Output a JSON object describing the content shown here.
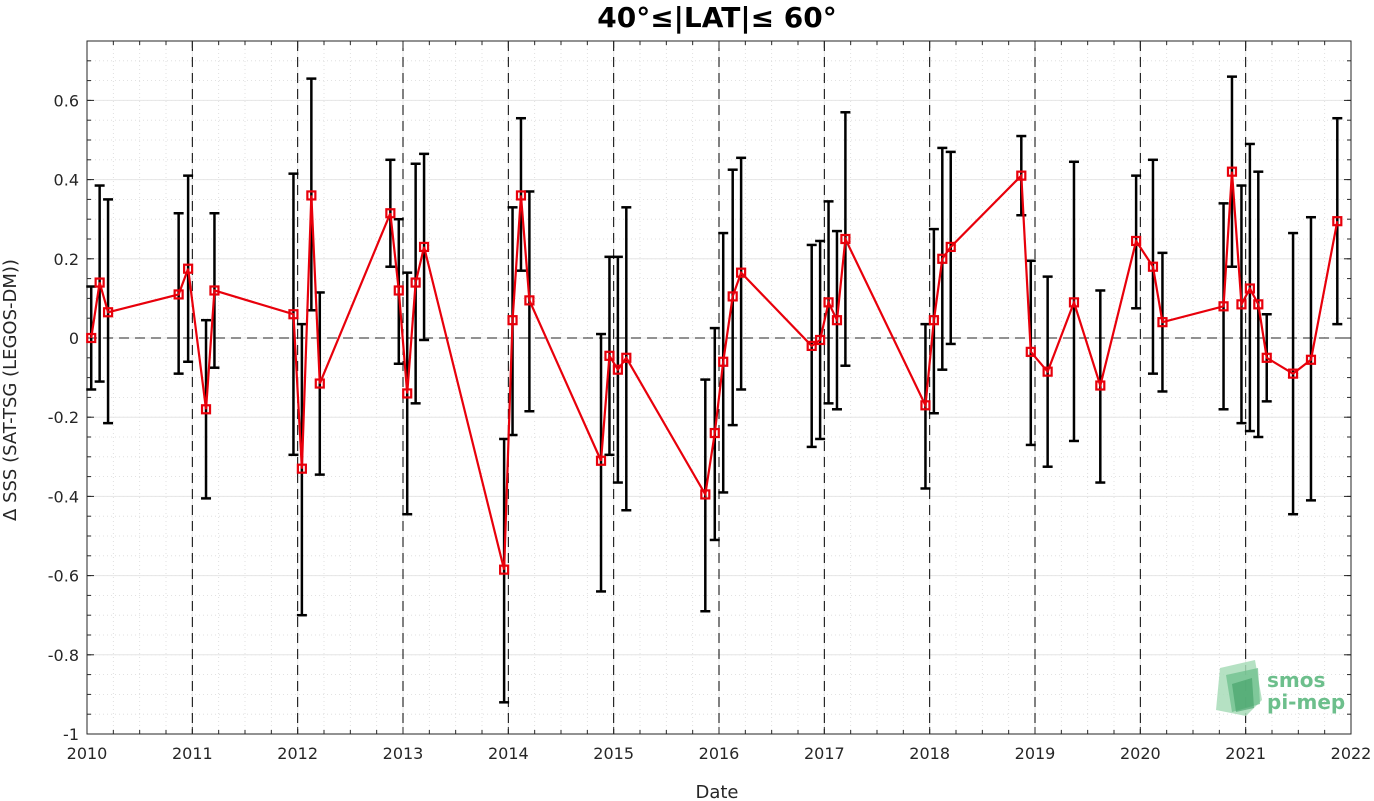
{
  "chart_data": {
    "type": "line",
    "title": "40°≤|LAT|≤ 60°",
    "xlabel": "Date",
    "ylabel": "Δ SSS (SAT-TSG (LEGOS-DM))",
    "xlim": [
      2010,
      2022
    ],
    "ylim": [
      -1,
      0.75
    ],
    "xticks": [
      "2010",
      "2011",
      "2012",
      "2013",
      "2014",
      "2015",
      "2016",
      "2017",
      "2018",
      "2019",
      "2020",
      "2021",
      "2022"
    ],
    "yticks": [
      "-1",
      "-0.8",
      "-0.6",
      "-0.4",
      "-0.2",
      "0",
      "0.2",
      "0.4",
      "0.6"
    ],
    "grid": true,
    "year_dividers": [
      2011,
      2012,
      2013,
      2014,
      2015,
      2016,
      2017,
      2018,
      2019,
      2020,
      2021
    ],
    "zero_line": true,
    "series": [
      {
        "color": "#e8000b",
        "marker": "square",
        "error_bar_color": "#000000",
        "points": [
          {
            "x": 2010.04,
            "y": 0.0,
            "lo": -0.13,
            "hi": 0.13
          },
          {
            "x": 2010.12,
            "y": 0.14,
            "lo": -0.11,
            "hi": 0.385
          },
          {
            "x": 2010.2,
            "y": 0.065,
            "lo": -0.215,
            "hi": 0.35
          },
          {
            "x": 2010.87,
            "y": 0.11,
            "lo": -0.09,
            "hi": 0.315
          },
          {
            "x": 2010.96,
            "y": 0.175,
            "lo": -0.06,
            "hi": 0.41
          },
          {
            "x": 2011.13,
            "y": -0.18,
            "lo": -0.405,
            "hi": 0.045
          },
          {
            "x": 2011.21,
            "y": 0.12,
            "lo": -0.075,
            "hi": 0.315
          },
          {
            "x": 2011.96,
            "y": 0.06,
            "lo": -0.295,
            "hi": 0.415
          },
          {
            "x": 2012.04,
            "y": -0.33,
            "lo": -0.7,
            "hi": 0.035
          },
          {
            "x": 2012.13,
            "y": 0.36,
            "lo": 0.07,
            "hi": 0.655
          },
          {
            "x": 2012.21,
            "y": -0.115,
            "lo": -0.345,
            "hi": 0.115
          },
          {
            "x": 2012.88,
            "y": 0.315,
            "lo": 0.18,
            "hi": 0.45
          },
          {
            "x": 2012.96,
            "y": 0.12,
            "lo": -0.065,
            "hi": 0.3
          },
          {
            "x": 2013.04,
            "y": -0.14,
            "lo": -0.445,
            "hi": 0.165
          },
          {
            "x": 2013.12,
            "y": 0.14,
            "lo": -0.165,
            "hi": 0.44
          },
          {
            "x": 2013.2,
            "y": 0.23,
            "lo": -0.005,
            "hi": 0.465
          },
          {
            "x": 2013.96,
            "y": -0.585,
            "lo": -0.92,
            "hi": -0.255
          },
          {
            "x": 2014.04,
            "y": 0.045,
            "lo": -0.245,
            "hi": 0.33
          },
          {
            "x": 2014.12,
            "y": 0.36,
            "lo": 0.17,
            "hi": 0.555
          },
          {
            "x": 2014.2,
            "y": 0.095,
            "lo": -0.185,
            "hi": 0.37
          },
          {
            "x": 2014.88,
            "y": -0.31,
            "lo": -0.64,
            "hi": 0.01
          },
          {
            "x": 2014.96,
            "y": -0.045,
            "lo": -0.295,
            "hi": 0.205
          },
          {
            "x": 2015.04,
            "y": -0.08,
            "lo": -0.365,
            "hi": 0.205
          },
          {
            "x": 2015.12,
            "y": -0.05,
            "lo": -0.435,
            "hi": 0.33
          },
          {
            "x": 2015.87,
            "y": -0.395,
            "lo": -0.69,
            "hi": -0.105
          },
          {
            "x": 2015.96,
            "y": -0.24,
            "lo": -0.51,
            "hi": 0.025
          },
          {
            "x": 2016.04,
            "y": -0.06,
            "lo": -0.39,
            "hi": 0.265
          },
          {
            "x": 2016.13,
            "y": 0.105,
            "lo": -0.22,
            "hi": 0.425
          },
          {
            "x": 2016.21,
            "y": 0.165,
            "lo": -0.13,
            "hi": 0.455
          },
          {
            "x": 2016.88,
            "y": -0.02,
            "lo": -0.275,
            "hi": 0.235
          },
          {
            "x": 2016.96,
            "y": -0.005,
            "lo": -0.255,
            "hi": 0.245
          },
          {
            "x": 2017.04,
            "y": 0.09,
            "lo": -0.165,
            "hi": 0.345
          },
          {
            "x": 2017.12,
            "y": 0.045,
            "lo": -0.18,
            "hi": 0.27
          },
          {
            "x": 2017.2,
            "y": 0.25,
            "lo": -0.07,
            "hi": 0.57
          },
          {
            "x": 2017.96,
            "y": -0.17,
            "lo": -0.38,
            "hi": 0.035
          },
          {
            "x": 2018.04,
            "y": 0.045,
            "lo": -0.19,
            "hi": 0.275
          },
          {
            "x": 2018.12,
            "y": 0.2,
            "lo": -0.08,
            "hi": 0.48
          },
          {
            "x": 2018.2,
            "y": 0.23,
            "lo": -0.015,
            "hi": 0.47
          },
          {
            "x": 2018.87,
            "y": 0.41,
            "lo": 0.31,
            "hi": 0.51
          },
          {
            "x": 2018.96,
            "y": -0.035,
            "lo": -0.27,
            "hi": 0.195
          },
          {
            "x": 2019.12,
            "y": -0.085,
            "lo": -0.325,
            "hi": 0.155
          },
          {
            "x": 2019.37,
            "y": 0.09,
            "lo": -0.26,
            "hi": 0.445
          },
          {
            "x": 2019.62,
            "y": -0.12,
            "lo": -0.365,
            "hi": 0.12
          },
          {
            "x": 2019.96,
            "y": 0.245,
            "lo": 0.075,
            "hi": 0.41
          },
          {
            "x": 2020.12,
            "y": 0.18,
            "lo": -0.09,
            "hi": 0.45
          },
          {
            "x": 2020.21,
            "y": 0.04,
            "lo": -0.135,
            "hi": 0.215
          },
          {
            "x": 2020.79,
            "y": 0.08,
            "lo": -0.18,
            "hi": 0.34
          },
          {
            "x": 2020.87,
            "y": 0.42,
            "lo": 0.18,
            "hi": 0.66
          },
          {
            "x": 2020.96,
            "y": 0.085,
            "lo": -0.215,
            "hi": 0.385
          },
          {
            "x": 2021.04,
            "y": 0.125,
            "lo": -0.235,
            "hi": 0.49
          },
          {
            "x": 2021.12,
            "y": 0.085,
            "lo": -0.25,
            "hi": 0.42
          },
          {
            "x": 2021.2,
            "y": -0.05,
            "lo": -0.16,
            "hi": 0.06
          },
          {
            "x": 2021.45,
            "y": -0.09,
            "lo": -0.445,
            "hi": 0.265
          },
          {
            "x": 2021.62,
            "y": -0.055,
            "lo": -0.41,
            "hi": 0.305
          },
          {
            "x": 2021.87,
            "y": 0.295,
            "lo": 0.035,
            "hi": 0.555
          }
        ]
      }
    ]
  },
  "logo": {
    "line1": "smos",
    "line2": "pi-mep",
    "color": "#6dbf8c"
  }
}
